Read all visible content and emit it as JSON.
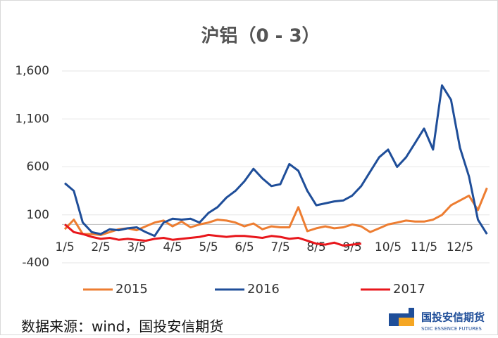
{
  "chart_data": {
    "type": "line",
    "title": "沪铝（0 - 3）",
    "categories": [
      "1/5",
      null,
      null,
      null,
      "2/5",
      null,
      null,
      null,
      "3/5",
      null,
      null,
      null,
      "4/5",
      null,
      null,
      null,
      "5/5",
      null,
      null,
      null,
      "6/5",
      null,
      null,
      null,
      "7/5",
      null,
      null,
      null,
      "8/5",
      null,
      null,
      null,
      "9/5",
      null,
      null,
      null,
      "10/5",
      null,
      null,
      null,
      "11/5",
      null,
      null,
      null,
      "12/5",
      null,
      null,
      null
    ],
    "series": [
      {
        "name": "2015",
        "color": "#ed7d31",
        "values": [
          -50,
          50,
          -100,
          -100,
          -110,
          -80,
          -50,
          -40,
          -60,
          -20,
          20,
          40,
          -20,
          30,
          -30,
          0,
          20,
          50,
          40,
          20,
          -20,
          10,
          -50,
          -20,
          -30,
          -30,
          180,
          -70,
          -40,
          -20,
          -40,
          -30,
          0,
          -20,
          -80,
          -40,
          0,
          20,
          40,
          30,
          30,
          50,
          100,
          200,
          250,
          300,
          150,
          380
        ]
      },
      {
        "name": "2016",
        "color": "#1f4e99",
        "values": [
          430,
          350,
          20,
          -80,
          -100,
          -50,
          -60,
          -40,
          -30,
          -80,
          -120,
          20,
          60,
          50,
          60,
          20,
          120,
          180,
          280,
          350,
          450,
          580,
          480,
          400,
          420,
          630,
          560,
          350,
          200,
          220,
          240,
          250,
          300,
          400,
          550,
          700,
          780,
          600,
          700,
          850,
          1000,
          780,
          1450,
          1300,
          800,
          500,
          50,
          -100
        ]
      },
      {
        "name": "2017",
        "color": "#e8171c",
        "values": [
          0,
          -80,
          -100,
          -130,
          -150,
          -140,
          -160,
          -150,
          -160,
          -170,
          -150,
          -140,
          -160,
          -150,
          -140,
          -130,
          -110,
          -120,
          -130,
          -120,
          -120,
          -130,
          -140,
          -120,
          -130,
          -150,
          -140,
          -170,
          -200,
          -210,
          -190,
          -220,
          -210,
          -200,
          null,
          null,
          null,
          null,
          null,
          null,
          null,
          null,
          null,
          null,
          null,
          null,
          null,
          null
        ]
      }
    ],
    "ylim": [
      -400,
      1600
    ],
    "yticks": [
      -400,
      100,
      600,
      {
        "value": 1100,
        "label": "1,100"
      },
      {
        "value": 1600,
        "label": "1,600"
      }
    ],
    "grid": true,
    "source": "数据来源：wind，国投安信期货",
    "logo": {
      "name": "国投安信期货",
      "subtitle": "SDIC ESSENCE FUTURES"
    }
  }
}
